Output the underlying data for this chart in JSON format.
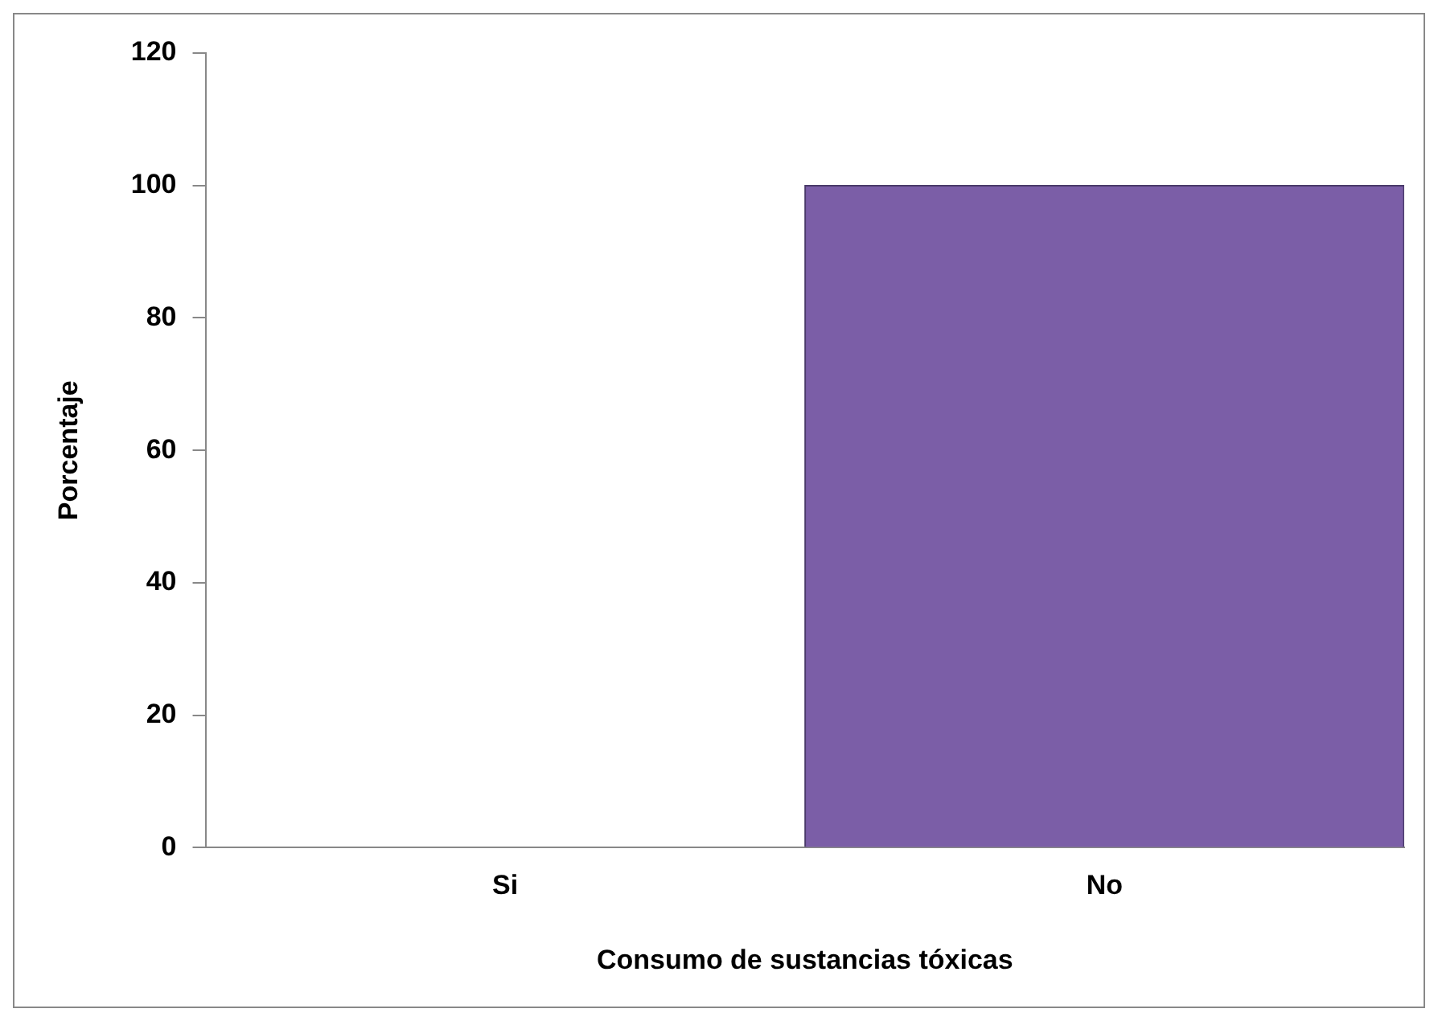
{
  "chart_data": {
    "type": "bar",
    "xlabel": "Consumo de sustancias tóxicas",
    "ylabel": "Porcentaje",
    "categories": [
      "Si",
      "No"
    ],
    "values": [
      0,
      100
    ],
    "color": "#7b5ea7",
    "ylim": [
      0,
      120
    ],
    "yticks": [
      0,
      20,
      40,
      60,
      80,
      100,
      120
    ],
    "grid": false
  }
}
